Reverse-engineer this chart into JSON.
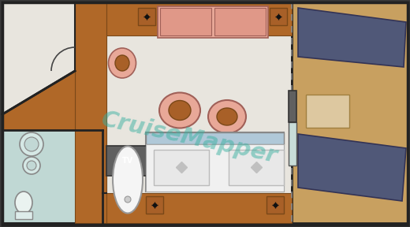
{
  "floor_main": "#e8e5de",
  "floor_wood": "#b06828",
  "floor_bath": "#c0d8d4",
  "floor_balcony": "#c8a060",
  "sofa_color": "#e8a898",
  "chair_pink": "#e8a898",
  "table_wood": "#a86028",
  "bed_white": "#f0f0f0",
  "bed_blue": "#d0e0ec",
  "dark_chair": "#505878",
  "tv_box": "#606060",
  "wall_dark": "#222222",
  "wall_mid": "#555555",
  "watermark": "#3ab0a0",
  "title": "CruiseMapper",
  "bg": "#3a3a3a"
}
